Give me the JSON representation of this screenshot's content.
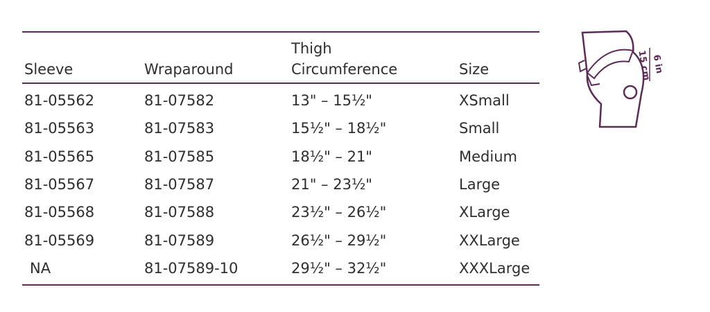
{
  "table": {
    "header": [
      "Sleeve",
      "Wraparound",
      "Thigh Circumference",
      "Size"
    ],
    "rows": [
      [
        "81-05562",
        "81-07582",
        "13\" – 15½\"",
        "XSmall"
      ],
      [
        "81-05563",
        "81-07583",
        "15½\" – 18½\"",
        "Small"
      ],
      [
        "81-05565",
        "81-07585",
        "18½\" – 21\"",
        "Medium"
      ],
      [
        "81-05567",
        "81-07587",
        "21\" – 23½\"",
        "Large"
      ],
      [
        "81-05568",
        "81-07588",
        "23½\" – 26½\"",
        "XLarge"
      ],
      [
        "81-05569",
        "81-07589",
        "26½\" – 29½\"",
        "XXLarge"
      ],
      [
        "NA",
        "81-07589-10",
        "29½\" – 32½\"",
        "XXXLarge"
      ]
    ]
  },
  "diagram": {
    "labels": [
      "15 cm",
      "6 in"
    ]
  }
}
